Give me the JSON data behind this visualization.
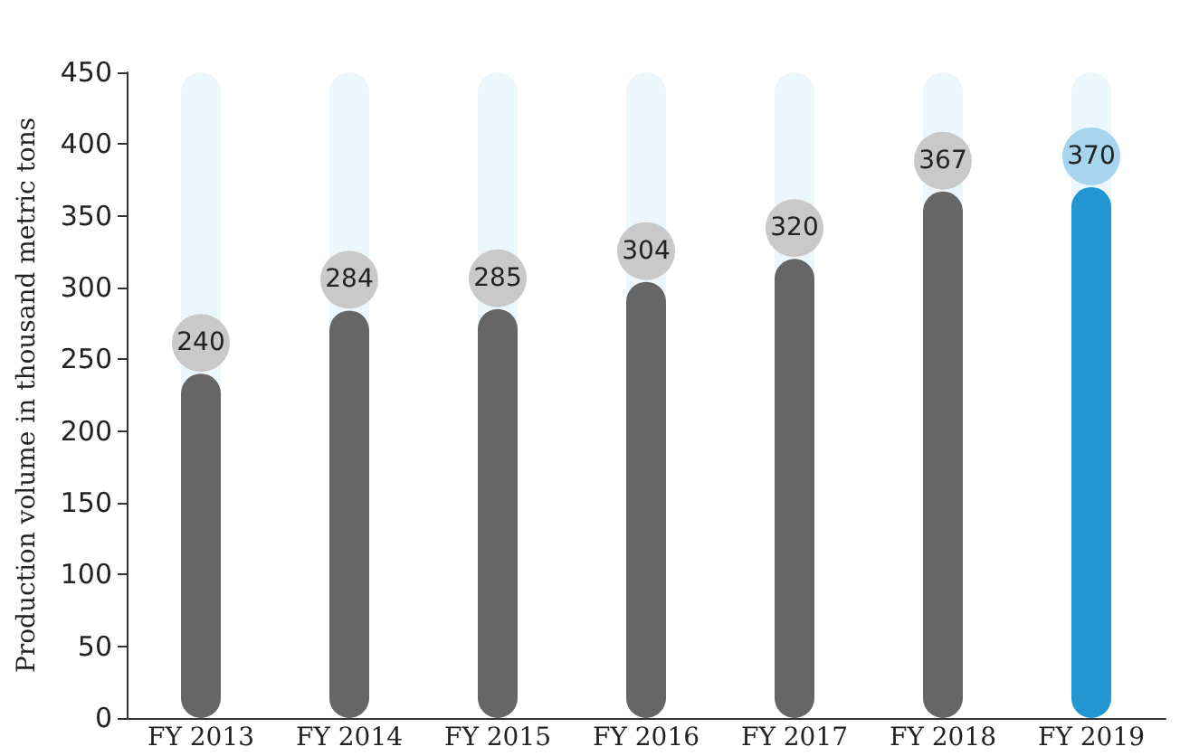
{
  "chart_data": {
    "type": "bar",
    "ylabel": "Production volume in thousand metric tons",
    "categories": [
      "FY 2013",
      "FY 2014",
      "FY 2015",
      "FY 2016",
      "FY 2017",
      "FY 2018",
      "FY 2019"
    ],
    "values": [
      240,
      284,
      285,
      304,
      320,
      367,
      370
    ],
    "colors": [
      "#666666",
      "#666666",
      "#666666",
      "#666666",
      "#666666",
      "#666666",
      "#2196d3"
    ],
    "ylim": [
      0,
      450
    ],
    "yticks": [
      0,
      50,
      100,
      150,
      200,
      250,
      300,
      350,
      400,
      450
    ],
    "grid": false,
    "data_labels": true
  }
}
